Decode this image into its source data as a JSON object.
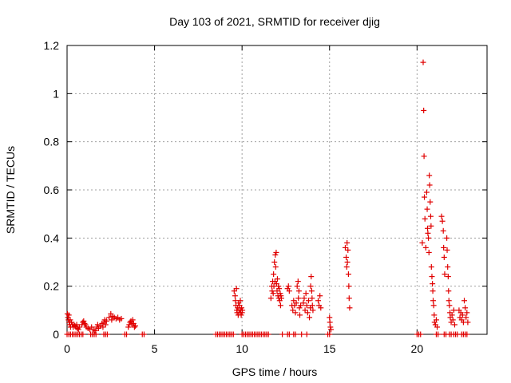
{
  "chart_data": {
    "type": "scatter",
    "title": "Day 103 of 2021, SRMTID for receiver djig",
    "xlabel": "GPS time / hours",
    "ylabel": "SRMTID / TECUs",
    "xlim": [
      0,
      24
    ],
    "ylim": [
      0,
      1.2
    ],
    "xticks": [
      0,
      5,
      10,
      15,
      20
    ],
    "xtick_labels": [
      "0",
      "5",
      "10",
      "15",
      "20"
    ],
    "yticks": [
      0,
      0.2,
      0.4,
      0.6,
      0.8,
      1.0,
      1.2
    ],
    "ytick_labels": [
      "0",
      "0.2",
      "0.4",
      "0.6",
      "0.8",
      "1",
      "1.2"
    ],
    "grid": true,
    "marker": "+",
    "color": "#e00000",
    "series": [
      {
        "name": "SRMTID",
        "points": [
          [
            0.02,
            0.085
          ],
          [
            0.05,
            0.07
          ],
          [
            0.08,
            0.06
          ],
          [
            0.1,
            0.08
          ],
          [
            0.12,
            0.05
          ],
          [
            0.15,
            0.04
          ],
          [
            0.18,
            0.06
          ],
          [
            0.2,
            0.03
          ],
          [
            0.25,
            0.05
          ],
          [
            0.3,
            0.04
          ],
          [
            0.35,
            0.03
          ],
          [
            0.4,
            0.04
          ],
          [
            0.45,
            0.035
          ],
          [
            0.5,
            0.03
          ],
          [
            0.55,
            0.04
          ],
          [
            0.6,
            0.025
          ],
          [
            0.65,
            0.02
          ],
          [
            0.7,
            0.03
          ],
          [
            0.85,
            0.04
          ],
          [
            0.9,
            0.05
          ],
          [
            0.95,
            0.055
          ],
          [
            1.0,
            0.045
          ],
          [
            1.05,
            0.04
          ],
          [
            1.1,
            0.03
          ],
          [
            1.2,
            0.025
          ],
          [
            1.3,
            0.02
          ],
          [
            1.4,
            0.03
          ],
          [
            1.5,
            0.02
          ],
          [
            1.6,
            0.015
          ],
          [
            1.7,
            0.03
          ],
          [
            1.75,
            0.04
          ],
          [
            1.8,
            0.025
          ],
          [
            1.9,
            0.035
          ],
          [
            2.0,
            0.045
          ],
          [
            2.05,
            0.03
          ],
          [
            2.1,
            0.05
          ],
          [
            2.15,
            0.06
          ],
          [
            2.2,
            0.04
          ],
          [
            2.25,
            0.055
          ],
          [
            2.4,
            0.07
          ],
          [
            2.5,
            0.085
          ],
          [
            2.55,
            0.06
          ],
          [
            2.6,
            0.075
          ],
          [
            2.7,
            0.07
          ],
          [
            2.8,
            0.065
          ],
          [
            2.9,
            0.07
          ],
          [
            3.0,
            0.06
          ],
          [
            3.1,
            0.065
          ],
          [
            3.5,
            0.03
          ],
          [
            3.55,
            0.04
          ],
          [
            3.6,
            0.05
          ],
          [
            3.65,
            0.055
          ],
          [
            3.7,
            0.04
          ],
          [
            3.75,
            0.06
          ],
          [
            3.8,
            0.045
          ],
          [
            3.85,
            0.03
          ],
          [
            3.9,
            0.035
          ],
          [
            9.55,
            0.18
          ],
          [
            9.6,
            0.16
          ],
          [
            9.62,
            0.14
          ],
          [
            9.65,
            0.12
          ],
          [
            9.68,
            0.19
          ],
          [
            9.7,
            0.1
          ],
          [
            9.72,
            0.09
          ],
          [
            9.75,
            0.11
          ],
          [
            9.78,
            0.08
          ],
          [
            9.8,
            0.13
          ],
          [
            9.82,
            0.1
          ],
          [
            9.85,
            0.12
          ],
          [
            9.88,
            0.09
          ],
          [
            9.9,
            0.14
          ],
          [
            9.92,
            0.1
          ],
          [
            9.95,
            0.08
          ],
          [
            9.97,
            0.11
          ],
          [
            10.0,
            0.09
          ],
          [
            10.02,
            0.1
          ],
          [
            11.65,
            0.15
          ],
          [
            11.7,
            0.2
          ],
          [
            11.72,
            0.18
          ],
          [
            11.75,
            0.22
          ],
          [
            11.78,
            0.17
          ],
          [
            11.8,
            0.25
          ],
          [
            11.82,
            0.2
          ],
          [
            11.85,
            0.3
          ],
          [
            11.88,
            0.22
          ],
          [
            11.9,
            0.33
          ],
          [
            11.92,
            0.28
          ],
          [
            11.95,
            0.34
          ],
          [
            11.97,
            0.21
          ],
          [
            12.0,
            0.18
          ],
          [
            12.02,
            0.23
          ],
          [
            12.05,
            0.16
          ],
          [
            12.08,
            0.2
          ],
          [
            12.1,
            0.15
          ],
          [
            12.12,
            0.19
          ],
          [
            12.15,
            0.14
          ],
          [
            12.18,
            0.17
          ],
          [
            12.2,
            0.12
          ],
          [
            12.22,
            0.16
          ],
          [
            12.25,
            0.15
          ],
          [
            12.6,
            0.19
          ],
          [
            12.65,
            0.2
          ],
          [
            12.7,
            0.18
          ],
          [
            12.85,
            0.12
          ],
          [
            12.9,
            0.1
          ],
          [
            12.95,
            0.14
          ],
          [
            13.0,
            0.12
          ],
          [
            13.05,
            0.09
          ],
          [
            13.1,
            0.13
          ],
          [
            13.15,
            0.2
          ],
          [
            13.2,
            0.22
          ],
          [
            13.22,
            0.15
          ],
          [
            13.25,
            0.18
          ],
          [
            13.28,
            0.11
          ],
          [
            13.3,
            0.08
          ],
          [
            13.35,
            0.12
          ],
          [
            13.5,
            0.13
          ],
          [
            13.55,
            0.15
          ],
          [
            13.6,
            0.1
          ],
          [
            13.65,
            0.17
          ],
          [
            13.7,
            0.12
          ],
          [
            13.75,
            0.09
          ],
          [
            13.8,
            0.14
          ],
          [
            13.85,
            0.07
          ],
          [
            13.9,
            0.11
          ],
          [
            13.92,
            0.2
          ],
          [
            13.95,
            0.24
          ],
          [
            13.98,
            0.18
          ],
          [
            14.0,
            0.15
          ],
          [
            14.02,
            0.12
          ],
          [
            14.05,
            0.1
          ],
          [
            14.35,
            0.14
          ],
          [
            14.4,
            0.12
          ],
          [
            14.45,
            0.16
          ],
          [
            14.5,
            0.11
          ],
          [
            15.0,
            0.07
          ],
          [
            15.02,
            0.05
          ],
          [
            15.05,
            0.03
          ],
          [
            15.08,
            0.02
          ],
          [
            15.9,
            0.36
          ],
          [
            15.95,
            0.32
          ],
          [
            15.98,
            0.28
          ],
          [
            16.0,
            0.38
          ],
          [
            16.02,
            0.3
          ],
          [
            16.05,
            0.35
          ],
          [
            16.08,
            0.25
          ],
          [
            16.1,
            0.2
          ],
          [
            16.12,
            0.15
          ],
          [
            16.15,
            0.11
          ],
          [
            20.3,
            0.38
          ],
          [
            20.35,
            1.13
          ],
          [
            20.38,
            0.93
          ],
          [
            20.4,
            0.74
          ],
          [
            20.42,
            0.57
          ],
          [
            20.45,
            0.48
          ],
          [
            20.5,
            0.36
          ],
          [
            20.55,
            0.59
          ],
          [
            20.58,
            0.52
          ],
          [
            20.6,
            0.44
          ],
          [
            20.62,
            0.42
          ],
          [
            20.65,
            0.4
          ],
          [
            20.68,
            0.34
          ],
          [
            20.7,
            0.66
          ],
          [
            20.72,
            0.62
          ],
          [
            20.75,
            0.55
          ],
          [
            20.78,
            0.49
          ],
          [
            20.8,
            0.45
          ],
          [
            20.82,
            0.28
          ],
          [
            20.85,
            0.24
          ],
          [
            20.88,
            0.21
          ],
          [
            20.9,
            0.18
          ],
          [
            20.92,
            0.14
          ],
          [
            20.95,
            0.12
          ],
          [
            20.98,
            0.08
          ],
          [
            21.0,
            0.05
          ],
          [
            21.05,
            0.04
          ],
          [
            21.1,
            0.06
          ],
          [
            21.15,
            0.03
          ],
          [
            21.4,
            0.49
          ],
          [
            21.45,
            0.47
          ],
          [
            21.5,
            0.43
          ],
          [
            21.52,
            0.36
          ],
          [
            21.55,
            0.32
          ],
          [
            21.58,
            0.25
          ],
          [
            21.7,
            0.4
          ],
          [
            21.72,
            0.35
          ],
          [
            21.75,
            0.28
          ],
          [
            21.78,
            0.24
          ],
          [
            21.8,
            0.18
          ],
          [
            21.82,
            0.14
          ],
          [
            21.85,
            0.12
          ],
          [
            21.88,
            0.09
          ],
          [
            21.9,
            0.07
          ],
          [
            21.95,
            0.05
          ],
          [
            22.0,
            0.08
          ],
          [
            22.05,
            0.06
          ],
          [
            22.1,
            0.1
          ],
          [
            22.15,
            0.04
          ],
          [
            22.4,
            0.1
          ],
          [
            22.45,
            0.07
          ],
          [
            22.5,
            0.09
          ],
          [
            22.55,
            0.06
          ],
          [
            22.6,
            0.08
          ],
          [
            22.65,
            0.05
          ],
          [
            22.7,
            0.14
          ],
          [
            22.75,
            0.11
          ],
          [
            22.8,
            0.07
          ],
          [
            22.85,
            0.09
          ],
          [
            22.9,
            0.05
          ]
        ]
      }
    ],
    "zero_band_segments": [
      [
        0.0,
        1.0
      ],
      [
        1.35,
        1.7
      ],
      [
        2.1,
        2.35
      ],
      [
        3.3,
        3.5
      ],
      [
        4.3,
        4.4
      ],
      [
        8.5,
        9.55
      ],
      [
        10.0,
        10.05
      ],
      [
        10.1,
        11.6
      ],
      [
        12.3,
        12.35
      ],
      [
        12.6,
        12.8
      ],
      [
        12.95,
        13.05
      ],
      [
        13.4,
        13.45
      ],
      [
        13.7,
        13.75
      ],
      [
        14.9,
        15.1
      ],
      [
        20.0,
        20.3
      ],
      [
        21.1,
        21.25
      ],
      [
        21.55,
        21.7
      ],
      [
        21.85,
        22.0
      ],
      [
        22.1,
        22.4
      ],
      [
        22.55,
        22.9
      ]
    ]
  }
}
